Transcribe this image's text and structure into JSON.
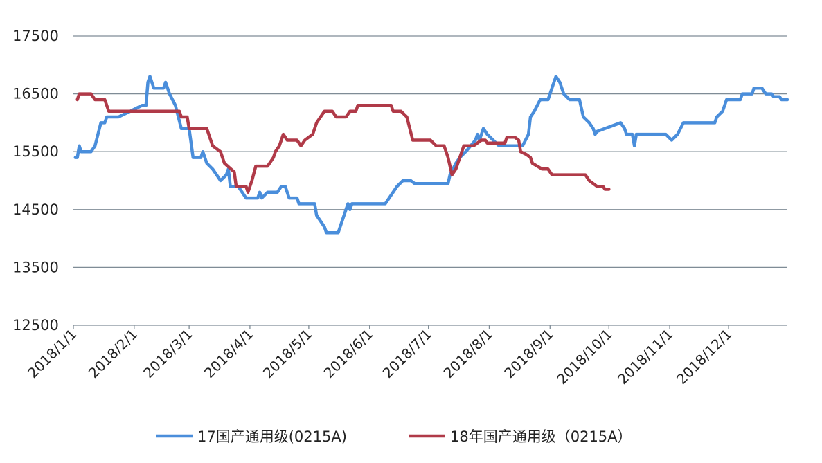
{
  "chart_data": {
    "type": "line",
    "title": "",
    "xlabel": "",
    "ylabel": "",
    "ylim": [
      12500,
      17500
    ],
    "yticks": [
      12500,
      13500,
      14500,
      15500,
      16500,
      17500
    ],
    "xlim": [
      "2018-01-01",
      "2018-12-31"
    ],
    "xticks": [
      "2018-01-01",
      "2018-02-01",
      "2018-03-01",
      "2018-04-01",
      "2018-05-01",
      "2018-06-01",
      "2018-07-01",
      "2018-08-01",
      "2018-09-01",
      "2018-10-01",
      "2018-11-01",
      "2018-12-01"
    ],
    "xtick_labels": [
      "2018/1/1",
      "2018/2/1",
      "2018/3/1",
      "2018/4/1",
      "2018/5/1",
      "2018/6/1",
      "2018/7/1",
      "2018/8/1",
      "2018/9/1",
      "2018/10/1",
      "2018/11/1",
      "2018/12/1"
    ],
    "grid": "horizontal",
    "legend_position": "bottom",
    "series": [
      {
        "name": "17国产通用级(0215A)",
        "color": "#4a8edb",
        "points": [
          [
            "2018-01-02",
            15400
          ],
          [
            "2018-01-03",
            15400
          ],
          [
            "2018-01-04",
            15600
          ],
          [
            "2018-01-05",
            15500
          ],
          [
            "2018-01-10",
            15500
          ],
          [
            "2018-01-12",
            15600
          ],
          [
            "2018-01-15",
            16000
          ],
          [
            "2018-01-17",
            16000
          ],
          [
            "2018-01-18",
            16100
          ],
          [
            "2018-01-24",
            16100
          ],
          [
            "2018-01-30",
            16200
          ],
          [
            "2018-02-05",
            16300
          ],
          [
            "2018-02-07",
            16300
          ],
          [
            "2018-02-08",
            16700
          ],
          [
            "2018-02-09",
            16800
          ],
          [
            "2018-02-11",
            16600
          ],
          [
            "2018-02-16",
            16600
          ],
          [
            "2018-02-17",
            16700
          ],
          [
            "2018-02-19",
            16500
          ],
          [
            "2018-02-22",
            16300
          ],
          [
            "2018-02-25",
            15900
          ],
          [
            "2018-03-01",
            15900
          ],
          [
            "2018-03-03",
            15400
          ],
          [
            "2018-03-07",
            15400
          ],
          [
            "2018-03-08",
            15500
          ],
          [
            "2018-03-10",
            15300
          ],
          [
            "2018-03-13",
            15200
          ],
          [
            "2018-03-15",
            15100
          ],
          [
            "2018-03-17",
            15000
          ],
          [
            "2018-03-20",
            15100
          ],
          [
            "2018-03-21",
            15200
          ],
          [
            "2018-03-22",
            14900
          ],
          [
            "2018-03-26",
            14900
          ],
          [
            "2018-03-28",
            14800
          ],
          [
            "2018-03-30",
            14700
          ],
          [
            "2018-04-05",
            14700
          ],
          [
            "2018-04-06",
            14800
          ],
          [
            "2018-04-07",
            14700
          ],
          [
            "2018-04-10",
            14800
          ],
          [
            "2018-04-15",
            14800
          ],
          [
            "2018-04-17",
            14900
          ],
          [
            "2018-04-19",
            14900
          ],
          [
            "2018-04-21",
            14700
          ],
          [
            "2018-04-25",
            14700
          ],
          [
            "2018-04-26",
            14600
          ],
          [
            "2018-05-04",
            14600
          ],
          [
            "2018-05-05",
            14400
          ],
          [
            "2018-05-07",
            14300
          ],
          [
            "2018-05-09",
            14200
          ],
          [
            "2018-05-10",
            14100
          ],
          [
            "2018-05-16",
            14100
          ],
          [
            "2018-05-18",
            14300
          ],
          [
            "2018-05-21",
            14600
          ],
          [
            "2018-05-22",
            14500
          ],
          [
            "2018-05-23",
            14600
          ],
          [
            "2018-06-09",
            14600
          ],
          [
            "2018-06-11",
            14700
          ],
          [
            "2018-06-13",
            14800
          ],
          [
            "2018-06-15",
            14900
          ],
          [
            "2018-06-18",
            15000
          ],
          [
            "2018-06-22",
            15000
          ],
          [
            "2018-06-24",
            14950
          ],
          [
            "2018-07-11",
            14950
          ],
          [
            "2018-07-12",
            15100
          ],
          [
            "2018-07-15",
            15300
          ],
          [
            "2018-07-17",
            15400
          ],
          [
            "2018-07-20",
            15500
          ],
          [
            "2018-07-25",
            15700
          ],
          [
            "2018-07-26",
            15800
          ],
          [
            "2018-07-27",
            15700
          ],
          [
            "2018-07-29",
            15900
          ],
          [
            "2018-07-31",
            15800
          ],
          [
            "2018-08-03",
            15700
          ],
          [
            "2018-08-06",
            15600
          ],
          [
            "2018-08-18",
            15600
          ],
          [
            "2018-08-21",
            15800
          ],
          [
            "2018-08-22",
            16100
          ],
          [
            "2018-08-24",
            16200
          ],
          [
            "2018-08-27",
            16400
          ],
          [
            "2018-08-31",
            16400
          ],
          [
            "2018-09-03",
            16700
          ],
          [
            "2018-09-04",
            16800
          ],
          [
            "2018-09-06",
            16700
          ],
          [
            "2018-09-08",
            16500
          ],
          [
            "2018-09-11",
            16400
          ],
          [
            "2018-09-16",
            16400
          ],
          [
            "2018-09-18",
            16100
          ],
          [
            "2018-09-21",
            16000
          ],
          [
            "2018-09-23",
            15900
          ],
          [
            "2018-09-24",
            15800
          ],
          [
            "2018-09-25",
            15850
          ],
          [
            "2018-10-07",
            16000
          ],
          [
            "2018-10-09",
            15900
          ],
          [
            "2018-10-10",
            15800
          ],
          [
            "2018-10-13",
            15800
          ],
          [
            "2018-10-14",
            15600
          ],
          [
            "2018-10-15",
            15800
          ],
          [
            "2018-10-30",
            15800
          ],
          [
            "2018-11-02",
            15700
          ],
          [
            "2018-11-05",
            15800
          ],
          [
            "2018-11-08",
            16000
          ],
          [
            "2018-11-24",
            16000
          ],
          [
            "2018-11-25",
            16100
          ],
          [
            "2018-11-28",
            16200
          ],
          [
            "2018-11-30",
            16400
          ],
          [
            "2018-12-07",
            16400
          ],
          [
            "2018-12-08",
            16500
          ],
          [
            "2018-12-13",
            16500
          ],
          [
            "2018-12-14",
            16600
          ],
          [
            "2018-12-18",
            16600
          ],
          [
            "2018-12-20",
            16500
          ],
          [
            "2018-12-23",
            16500
          ],
          [
            "2018-12-24",
            16450
          ],
          [
            "2018-12-27",
            16450
          ],
          [
            "2018-12-28",
            16400
          ],
          [
            "2018-12-31",
            16400
          ]
        ]
      },
      {
        "name": "18年国产通用级（0215A）",
        "color": "#b03a48",
        "points": [
          [
            "2018-01-03",
            16400
          ],
          [
            "2018-01-04",
            16500
          ],
          [
            "2018-01-10",
            16500
          ],
          [
            "2018-01-12",
            16400
          ],
          [
            "2018-01-17",
            16400
          ],
          [
            "2018-01-18",
            16300
          ],
          [
            "2018-01-19",
            16200
          ],
          [
            "2018-02-24",
            16200
          ],
          [
            "2018-02-25",
            16100
          ],
          [
            "2018-02-28",
            16100
          ],
          [
            "2018-03-01",
            15900
          ],
          [
            "2018-03-10",
            15900
          ],
          [
            "2018-03-12",
            15700
          ],
          [
            "2018-03-13",
            15600
          ],
          [
            "2018-03-17",
            15500
          ],
          [
            "2018-03-19",
            15300
          ],
          [
            "2018-03-24",
            15150
          ],
          [
            "2018-03-25",
            14900
          ],
          [
            "2018-03-30",
            14900
          ],
          [
            "2018-03-31",
            14800
          ],
          [
            "2018-04-02",
            15000
          ],
          [
            "2018-04-04",
            15250
          ],
          [
            "2018-04-10",
            15250
          ],
          [
            "2018-04-13",
            15400
          ],
          [
            "2018-04-14",
            15500
          ],
          [
            "2018-04-16",
            15600
          ],
          [
            "2018-04-18",
            15800
          ],
          [
            "2018-04-20",
            15700
          ],
          [
            "2018-04-25",
            15700
          ],
          [
            "2018-04-27",
            15600
          ],
          [
            "2018-04-29",
            15700
          ],
          [
            "2018-05-03",
            15800
          ],
          [
            "2018-05-05",
            16000
          ],
          [
            "2018-05-07",
            16100
          ],
          [
            "2018-05-09",
            16200
          ],
          [
            "2018-05-13",
            16200
          ],
          [
            "2018-05-15",
            16100
          ],
          [
            "2018-05-20",
            16100
          ],
          [
            "2018-05-22",
            16200
          ],
          [
            "2018-05-25",
            16200
          ],
          [
            "2018-05-26",
            16300
          ],
          [
            "2018-06-12",
            16300
          ],
          [
            "2018-06-13",
            16200
          ],
          [
            "2018-06-17",
            16200
          ],
          [
            "2018-06-20",
            16100
          ],
          [
            "2018-06-23",
            15700
          ],
          [
            "2018-06-29",
            15700
          ],
          [
            "2018-06-30",
            15700
          ],
          [
            "2018-07-02",
            15700
          ],
          [
            "2018-07-05",
            15600
          ],
          [
            "2018-07-09",
            15600
          ],
          [
            "2018-07-11",
            15400
          ],
          [
            "2018-07-13",
            15100
          ],
          [
            "2018-07-15",
            15200
          ],
          [
            "2018-07-17",
            15400
          ],
          [
            "2018-07-19",
            15600
          ],
          [
            "2018-07-24",
            15600
          ],
          [
            "2018-07-28",
            15700
          ],
          [
            "2018-07-30",
            15700
          ],
          [
            "2018-07-31",
            15650
          ],
          [
            "2018-08-09",
            15650
          ],
          [
            "2018-08-10",
            15750
          ],
          [
            "2018-08-14",
            15750
          ],
          [
            "2018-08-16",
            15700
          ],
          [
            "2018-08-17",
            15500
          ],
          [
            "2018-08-20",
            15450
          ],
          [
            "2018-08-22",
            15400
          ],
          [
            "2018-08-23",
            15300
          ],
          [
            "2018-08-28",
            15200
          ],
          [
            "2018-08-31",
            15200
          ],
          [
            "2018-09-02",
            15100
          ],
          [
            "2018-09-19",
            15100
          ],
          [
            "2018-09-21",
            15000
          ],
          [
            "2018-09-25",
            14900
          ],
          [
            "2018-09-28",
            14900
          ],
          [
            "2018-09-29",
            14850
          ],
          [
            "2018-10-01",
            14850
          ]
        ]
      }
    ]
  }
}
